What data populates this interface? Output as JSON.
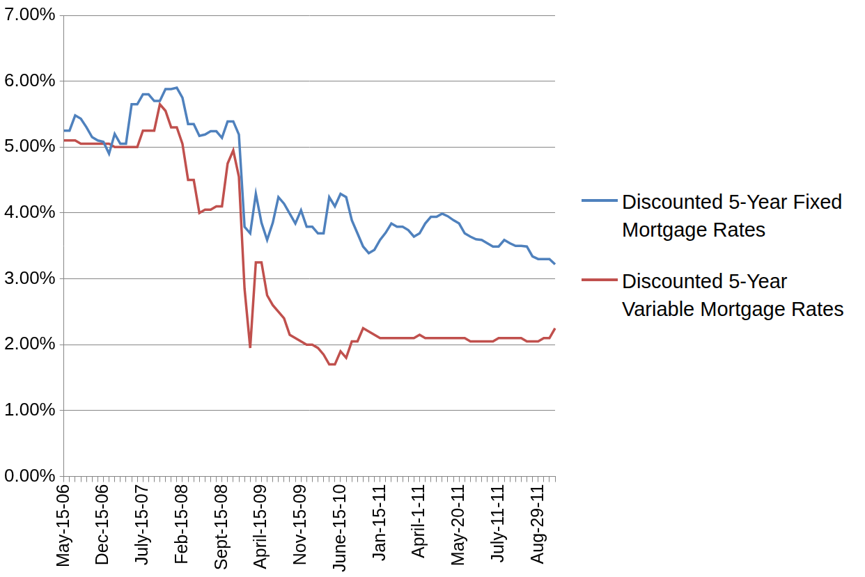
{
  "chart_data": {
    "type": "line",
    "categories": [
      "May-15-06",
      null,
      null,
      null,
      null,
      null,
      null,
      "Dec-15-06",
      null,
      null,
      null,
      null,
      null,
      null,
      "July-15-07",
      null,
      null,
      null,
      null,
      null,
      null,
      "Feb-15-08",
      null,
      null,
      null,
      null,
      null,
      null,
      "Sept-15-08",
      null,
      null,
      null,
      null,
      null,
      null,
      "April-15-09",
      null,
      null,
      null,
      null,
      null,
      null,
      "Nov-15-09",
      null,
      null,
      null,
      null,
      null,
      null,
      "June-15-10",
      null,
      null,
      null,
      null,
      null,
      null,
      "Jan-15-11",
      null,
      null,
      null,
      null,
      null,
      null,
      "April-1-11",
      null,
      null,
      null,
      null,
      null,
      null,
      "May-20-11",
      null,
      null,
      null,
      null,
      null,
      null,
      "July-11-11",
      null,
      null,
      null,
      null,
      null,
      null,
      "Aug-29-11",
      null,
      null,
      null
    ],
    "series": [
      {
        "name": "Discounted 5-Year Fixed Mortgage Rates",
        "color": "#4f81bd",
        "values": [
          5.25,
          5.25,
          5.48,
          5.43,
          5.3,
          5.15,
          5.1,
          5.08,
          4.9,
          5.2,
          5.05,
          5.05,
          5.65,
          5.65,
          5.8,
          5.8,
          5.7,
          5.7,
          5.88,
          5.88,
          5.9,
          5.75,
          5.35,
          5.35,
          5.17,
          5.19,
          5.24,
          5.24,
          5.14,
          5.39,
          5.39,
          5.19,
          3.79,
          3.69,
          4.29,
          3.85,
          3.59,
          3.85,
          4.24,
          4.14,
          3.99,
          3.84,
          4.04,
          3.79,
          3.79,
          3.69,
          3.69,
          4.24,
          4.1,
          4.29,
          4.24,
          3.89,
          3.69,
          3.49,
          3.39,
          3.44,
          3.59,
          3.7,
          3.84,
          3.79,
          3.79,
          3.74,
          3.64,
          3.69,
          3.84,
          3.94,
          3.94,
          3.99,
          3.95,
          3.89,
          3.84,
          3.69,
          3.64,
          3.6,
          3.59,
          3.54,
          3.49,
          3.49,
          3.59,
          3.54,
          3.5,
          3.5,
          3.49,
          3.34,
          3.3,
          3.3,
          3.3,
          3.22
        ]
      },
      {
        "name": "Discounted 5-Year Variable Mortgage Rates",
        "color": "#c0504d",
        "values": [
          5.1,
          5.1,
          5.1,
          5.05,
          5.05,
          5.05,
          5.05,
          5.05,
          5.05,
          5.0,
          5.0,
          5.0,
          5.0,
          5.0,
          5.25,
          5.25,
          5.25,
          5.65,
          5.55,
          5.3,
          5.3,
          5.05,
          4.5,
          4.5,
          4.0,
          4.05,
          4.05,
          4.1,
          4.1,
          4.75,
          4.95,
          4.55,
          2.85,
          1.95,
          3.25,
          3.25,
          2.75,
          2.6,
          2.5,
          2.4,
          2.15,
          2.1,
          2.05,
          2.0,
          2.0,
          1.95,
          1.85,
          1.7,
          1.7,
          1.9,
          1.8,
          2.05,
          2.05,
          2.25,
          2.2,
          2.15,
          2.1,
          2.1,
          2.1,
          2.1,
          2.1,
          2.1,
          2.1,
          2.15,
          2.1,
          2.1,
          2.1,
          2.1,
          2.1,
          2.1,
          2.1,
          2.1,
          2.05,
          2.05,
          2.05,
          2.05,
          2.05,
          2.1,
          2.1,
          2.1,
          2.1,
          2.1,
          2.05,
          2.05,
          2.05,
          2.1,
          2.1,
          2.25
        ]
      }
    ],
    "ylim": [
      0,
      7
    ],
    "yticks": [
      {
        "value": 0,
        "label": "0.00%"
      },
      {
        "value": 1,
        "label": "1.00%"
      },
      {
        "value": 2,
        "label": "2.00%"
      },
      {
        "value": 3,
        "label": "3.00%"
      },
      {
        "value": 4,
        "label": "4.00%"
      },
      {
        "value": 5,
        "label": "5.00%"
      },
      {
        "value": 6,
        "label": "6.00%"
      },
      {
        "value": 7,
        "label": "7.00%"
      }
    ],
    "grid": true,
    "legend": "right"
  }
}
